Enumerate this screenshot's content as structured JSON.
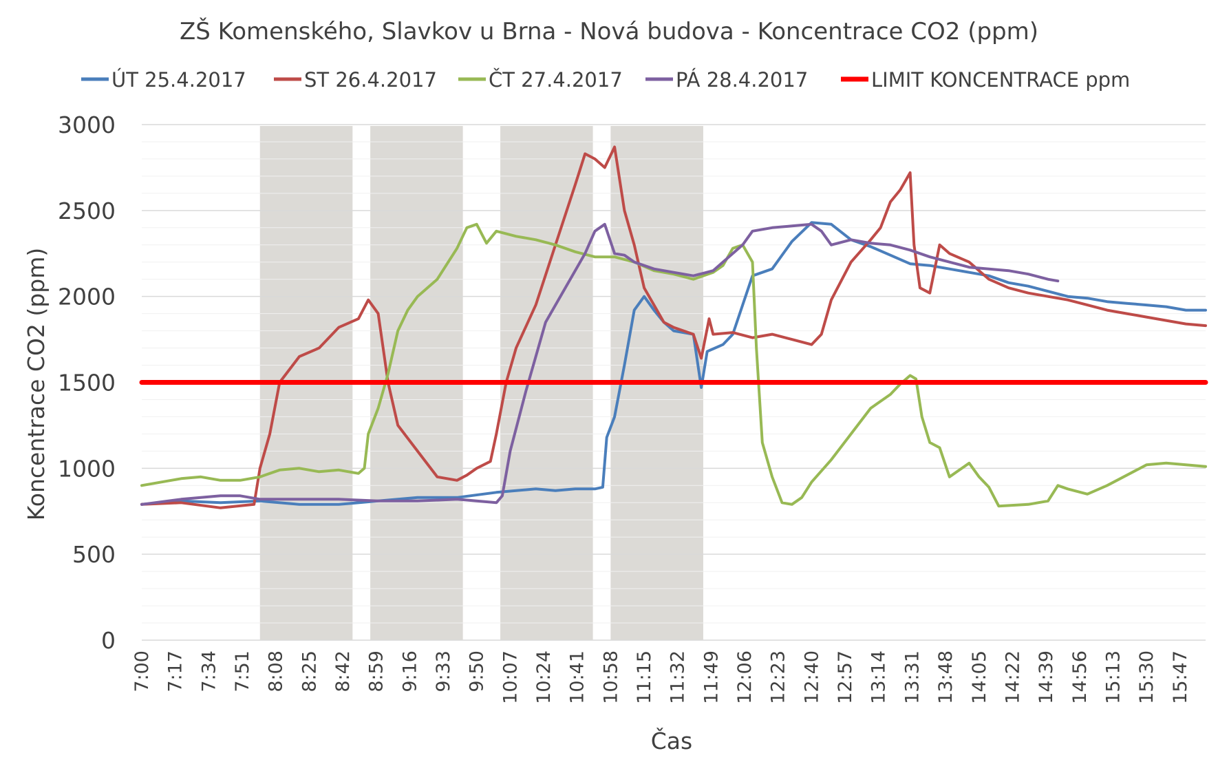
{
  "chart_data": {
    "type": "line",
    "title": "ZŠ Komenského, Slavkov u Brna - Nová budova - Koncentrace CO2 (ppm)",
    "xlabel": "Čas",
    "ylabel": "Koncentrace CO2 (ppm)",
    "ylim": [
      0,
      3000
    ],
    "yticks": [
      0,
      500,
      1000,
      1500,
      2000,
      2500,
      3000
    ],
    "x_tick_labels": [
      "7:00",
      "7:17",
      "7:34",
      "7:51",
      "8:08",
      "8:25",
      "8:42",
      "8:59",
      "9:16",
      "9:33",
      "9:50",
      "10:07",
      "10:24",
      "10:41",
      "10:58",
      "11:15",
      "11:32",
      "11:49",
      "12:06",
      "12:23",
      "12:40",
      "12:57",
      "13:14",
      "13:31",
      "13:48",
      "14:05",
      "14:22",
      "14:39",
      "14:56",
      "15:13",
      "15:30",
      "15:47"
    ],
    "x_unit": "HH:MM",
    "x_range": [
      "7:00",
      "16:00"
    ],
    "grid": "horizontal",
    "legend_position": "top",
    "shaded_periods": [
      [
        "8:00",
        "8:47"
      ],
      [
        "8:56",
        "9:43"
      ],
      [
        "10:02",
        "10:49"
      ],
      [
        "10:58",
        "11:45"
      ]
    ],
    "series": [
      {
        "name": "ÚT 25.4.2017",
        "color": "#4a7ebb",
        "points": [
          [
            "7:00",
            790
          ],
          [
            "7:20",
            810
          ],
          [
            "7:40",
            800
          ],
          [
            "8:00",
            810
          ],
          [
            "8:20",
            790
          ],
          [
            "8:40",
            790
          ],
          [
            "9:00",
            810
          ],
          [
            "9:20",
            830
          ],
          [
            "9:40",
            830
          ],
          [
            "10:00",
            860
          ],
          [
            "10:10",
            870
          ],
          [
            "10:20",
            880
          ],
          [
            "10:30",
            870
          ],
          [
            "10:40",
            880
          ],
          [
            "10:50",
            880
          ],
          [
            "10:54",
            890
          ],
          [
            "10:56",
            1180
          ],
          [
            "11:00",
            1300
          ],
          [
            "11:05",
            1600
          ],
          [
            "11:10",
            1920
          ],
          [
            "11:15",
            2000
          ],
          [
            "11:20",
            1920
          ],
          [
            "11:25",
            1850
          ],
          [
            "11:30",
            1800
          ],
          [
            "11:40",
            1780
          ],
          [
            "11:44",
            1470
          ],
          [
            "11:47",
            1680
          ],
          [
            "11:55",
            1720
          ],
          [
            "12:00",
            1780
          ],
          [
            "12:05",
            1950
          ],
          [
            "12:10",
            2120
          ],
          [
            "12:20",
            2160
          ],
          [
            "12:30",
            2320
          ],
          [
            "12:40",
            2430
          ],
          [
            "12:50",
            2420
          ],
          [
            "13:00",
            2330
          ],
          [
            "13:10",
            2290
          ],
          [
            "13:20",
            2240
          ],
          [
            "13:30",
            2190
          ],
          [
            "13:40",
            2180
          ],
          [
            "13:50",
            2160
          ],
          [
            "14:00",
            2140
          ],
          [
            "14:10",
            2120
          ],
          [
            "14:20",
            2080
          ],
          [
            "14:30",
            2060
          ],
          [
            "14:40",
            2030
          ],
          [
            "14:50",
            2000
          ],
          [
            "15:00",
            1990
          ],
          [
            "15:10",
            1970
          ],
          [
            "15:20",
            1960
          ],
          [
            "15:30",
            1950
          ],
          [
            "15:40",
            1940
          ],
          [
            "15:50",
            1920
          ],
          [
            "16:00",
            1920
          ]
        ]
      },
      {
        "name": "ST 26.4.2017",
        "color": "#be4b48",
        "points": [
          [
            "7:00",
            790
          ],
          [
            "7:20",
            800
          ],
          [
            "7:40",
            770
          ],
          [
            "7:57",
            790
          ],
          [
            "8:00",
            1000
          ],
          [
            "8:05",
            1200
          ],
          [
            "8:10",
            1500
          ],
          [
            "8:20",
            1650
          ],
          [
            "8:30",
            1700
          ],
          [
            "8:40",
            1820
          ],
          [
            "8:50",
            1870
          ],
          [
            "8:55",
            1980
          ],
          [
            "9:00",
            1900
          ],
          [
            "9:05",
            1500
          ],
          [
            "9:10",
            1250
          ],
          [
            "9:20",
            1100
          ],
          [
            "9:30",
            950
          ],
          [
            "9:40",
            930
          ],
          [
            "9:45",
            960
          ],
          [
            "9:50",
            1000
          ],
          [
            "9:57",
            1040
          ],
          [
            "10:00",
            1200
          ],
          [
            "10:05",
            1500
          ],
          [
            "10:10",
            1700
          ],
          [
            "10:20",
            1950
          ],
          [
            "10:30",
            2300
          ],
          [
            "10:40",
            2650
          ],
          [
            "10:45",
            2830
          ],
          [
            "10:50",
            2800
          ],
          [
            "10:55",
            2750
          ],
          [
            "11:00",
            2870
          ],
          [
            "11:05",
            2500
          ],
          [
            "11:10",
            2300
          ],
          [
            "11:15",
            2050
          ],
          [
            "11:20",
            1950
          ],
          [
            "11:25",
            1850
          ],
          [
            "11:30",
            1820
          ],
          [
            "11:40",
            1780
          ],
          [
            "11:44",
            1640
          ],
          [
            "11:48",
            1870
          ],
          [
            "11:50",
            1780
          ],
          [
            "12:00",
            1790
          ],
          [
            "12:10",
            1760
          ],
          [
            "12:20",
            1780
          ],
          [
            "12:30",
            1750
          ],
          [
            "12:40",
            1720
          ],
          [
            "12:45",
            1780
          ],
          [
            "12:50",
            1980
          ],
          [
            "13:00",
            2200
          ],
          [
            "13:10",
            2330
          ],
          [
            "13:15",
            2400
          ],
          [
            "13:20",
            2550
          ],
          [
            "13:25",
            2620
          ],
          [
            "13:30",
            2720
          ],
          [
            "13:32",
            2300
          ],
          [
            "13:35",
            2050
          ],
          [
            "13:40",
            2020
          ],
          [
            "13:45",
            2300
          ],
          [
            "13:50",
            2250
          ],
          [
            "14:00",
            2200
          ],
          [
            "14:10",
            2100
          ],
          [
            "14:20",
            2050
          ],
          [
            "14:30",
            2020
          ],
          [
            "14:40",
            2000
          ],
          [
            "14:50",
            1980
          ],
          [
            "15:00",
            1950
          ],
          [
            "15:10",
            1920
          ],
          [
            "15:20",
            1900
          ],
          [
            "15:30",
            1880
          ],
          [
            "15:40",
            1860
          ],
          [
            "15:50",
            1840
          ],
          [
            "16:00",
            1830
          ]
        ]
      },
      {
        "name": "ČT 27.4.2017",
        "color": "#98b954",
        "points": [
          [
            "7:00",
            900
          ],
          [
            "7:10",
            920
          ],
          [
            "7:20",
            940
          ],
          [
            "7:30",
            950
          ],
          [
            "7:40",
            930
          ],
          [
            "7:50",
            930
          ],
          [
            "8:00",
            950
          ],
          [
            "8:10",
            990
          ],
          [
            "8:20",
            1000
          ],
          [
            "8:30",
            980
          ],
          [
            "8:40",
            990
          ],
          [
            "8:50",
            970
          ],
          [
            "8:53",
            1000
          ],
          [
            "8:55",
            1200
          ],
          [
            "9:00",
            1350
          ],
          [
            "9:05",
            1550
          ],
          [
            "9:10",
            1800
          ],
          [
            "9:15",
            1920
          ],
          [
            "9:20",
            2000
          ],
          [
            "9:30",
            2100
          ],
          [
            "9:40",
            2280
          ],
          [
            "9:45",
            2400
          ],
          [
            "9:50",
            2420
          ],
          [
            "9:55",
            2310
          ],
          [
            "10:00",
            2380
          ],
          [
            "10:10",
            2350
          ],
          [
            "10:20",
            2330
          ],
          [
            "10:30",
            2300
          ],
          [
            "10:40",
            2260
          ],
          [
            "10:50",
            2230
          ],
          [
            "11:00",
            2230
          ],
          [
            "11:10",
            2200
          ],
          [
            "11:20",
            2150
          ],
          [
            "11:30",
            2130
          ],
          [
            "11:40",
            2100
          ],
          [
            "11:50",
            2140
          ],
          [
            "11:55",
            2180
          ],
          [
            "12:00",
            2280
          ],
          [
            "12:05",
            2300
          ],
          [
            "12:10",
            2200
          ],
          [
            "12:12",
            1700
          ],
          [
            "12:15",
            1150
          ],
          [
            "12:20",
            950
          ],
          [
            "12:25",
            800
          ],
          [
            "12:30",
            790
          ],
          [
            "12:35",
            830
          ],
          [
            "12:40",
            920
          ],
          [
            "12:50",
            1050
          ],
          [
            "13:00",
            1200
          ],
          [
            "13:10",
            1350
          ],
          [
            "13:20",
            1430
          ],
          [
            "13:25",
            1490
          ],
          [
            "13:30",
            1540
          ],
          [
            "13:33",
            1520
          ],
          [
            "13:36",
            1300
          ],
          [
            "13:40",
            1150
          ],
          [
            "13:45",
            1120
          ],
          [
            "13:50",
            950
          ],
          [
            "14:00",
            1030
          ],
          [
            "14:05",
            950
          ],
          [
            "14:10",
            890
          ],
          [
            "14:15",
            780
          ],
          [
            "14:30",
            790
          ],
          [
            "14:40",
            810
          ],
          [
            "14:45",
            900
          ],
          [
            "14:50",
            880
          ],
          [
            "15:00",
            850
          ],
          [
            "15:10",
            900
          ],
          [
            "15:20",
            960
          ],
          [
            "15:30",
            1020
          ],
          [
            "15:40",
            1030
          ],
          [
            "15:50",
            1020
          ],
          [
            "16:00",
            1010
          ]
        ]
      },
      {
        "name": "PÁ 28.4.2017",
        "color": "#7d60a0",
        "points": [
          [
            "7:00",
            790
          ],
          [
            "7:20",
            820
          ],
          [
            "7:40",
            840
          ],
          [
            "7:50",
            840
          ],
          [
            "8:00",
            820
          ],
          [
            "8:20",
            820
          ],
          [
            "8:40",
            820
          ],
          [
            "9:00",
            810
          ],
          [
            "9:20",
            810
          ],
          [
            "9:40",
            820
          ],
          [
            "10:00",
            800
          ],
          [
            "10:03",
            840
          ],
          [
            "10:07",
            1100
          ],
          [
            "10:15",
            1450
          ],
          [
            "10:25",
            1850
          ],
          [
            "10:35",
            2050
          ],
          [
            "10:45",
            2250
          ],
          [
            "10:50",
            2380
          ],
          [
            "10:55",
            2420
          ],
          [
            "11:00",
            2250
          ],
          [
            "11:05",
            2240
          ],
          [
            "11:10",
            2200
          ],
          [
            "11:20",
            2160
          ],
          [
            "11:30",
            2140
          ],
          [
            "11:40",
            2120
          ],
          [
            "11:50",
            2150
          ],
          [
            "12:00",
            2250
          ],
          [
            "12:05",
            2300
          ],
          [
            "12:10",
            2380
          ],
          [
            "12:20",
            2400
          ],
          [
            "12:30",
            2410
          ],
          [
            "12:40",
            2420
          ],
          [
            "12:45",
            2380
          ],
          [
            "12:50",
            2300
          ],
          [
            "13:00",
            2330
          ],
          [
            "13:10",
            2310
          ],
          [
            "13:20",
            2300
          ],
          [
            "13:30",
            2270
          ],
          [
            "13:40",
            2230
          ],
          [
            "13:50",
            2200
          ],
          [
            "14:00",
            2170
          ],
          [
            "14:10",
            2160
          ],
          [
            "14:20",
            2150
          ],
          [
            "14:30",
            2130
          ],
          [
            "14:40",
            2100
          ],
          [
            "14:45",
            2090
          ]
        ]
      },
      {
        "name": "LIMIT KONCENTRACE ppm",
        "color": "#ff0000",
        "points": [
          [
            "7:00",
            1500
          ],
          [
            "16:00",
            1500
          ]
        ]
      }
    ]
  }
}
